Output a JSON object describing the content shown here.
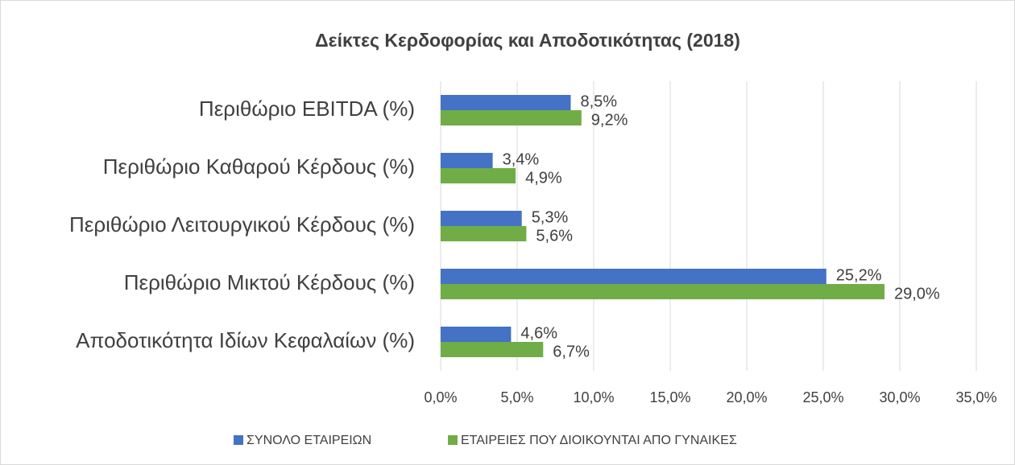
{
  "chart_data": {
    "type": "hbar",
    "title": "Δείκτες Κερδοφορίας και Αποδοτικότητας (2018)",
    "categories": [
      "Περιθώριο EBITDA (%)",
      "Περιθώριο Καθαρού Κέρδους (%)",
      "Περιθώριο Λειτουργικού Κέρδους (%)",
      "Περιθώριο Μικτού Κέρδους (%)",
      "Αποδοτικότητα Ιδίων Κεφαλαίων (%)"
    ],
    "series": [
      {
        "name": "ΣΥΝΟΛΟ ΕΤΑΙΡΕΙΩΝ",
        "color": "#4472c4",
        "values": [
          8.5,
          3.4,
          5.3,
          25.2,
          4.6
        ],
        "value_labels": [
          "8,5%",
          "3,4%",
          "5,3%",
          "25,2%",
          "4,6%"
        ]
      },
      {
        "name": "ΕΤΑΙΡΕΙΕΣ ΠΟΥ ΔΙΟΙΚΟΥΝΤΑΙ ΑΠΟ ΓΥΝΑΙΚΕΣ",
        "color": "#70ad47",
        "values": [
          9.2,
          4.9,
          5.6,
          29.0,
          6.7
        ],
        "value_labels": [
          "9,2%",
          "4,9%",
          "5,6%",
          "29,0%",
          "6,7%"
        ]
      }
    ],
    "xlim": [
      0,
      35
    ],
    "xticks": [
      {
        "value": 0,
        "label": "0,0%"
      },
      {
        "value": 5,
        "label": "5,0%"
      },
      {
        "value": 10,
        "label": "10,0%"
      },
      {
        "value": 15,
        "label": "15,0%"
      },
      {
        "value": 20,
        "label": "20,0%"
      },
      {
        "value": 25,
        "label": "25,0%"
      },
      {
        "value": 30,
        "label": "30,0%"
      },
      {
        "value": 35,
        "label": "35,0%"
      }
    ],
    "grid": true,
    "legend": "bottom"
  }
}
